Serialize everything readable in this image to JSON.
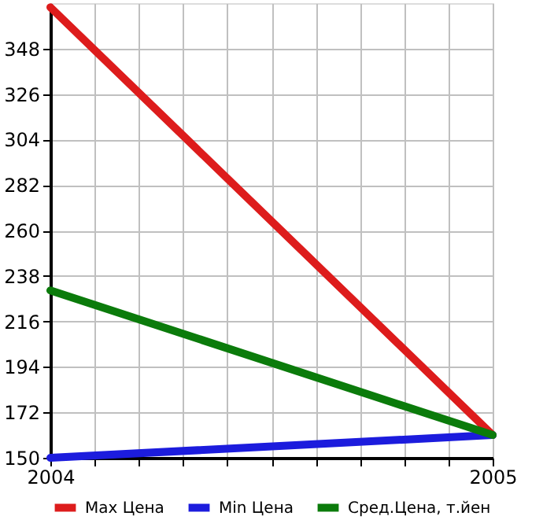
{
  "chart_data": {
    "type": "line",
    "x": [
      2004,
      2005
    ],
    "series": [
      {
        "name": "Max Цена",
        "color": "#dd1c1c",
        "values": [
          368,
          161
        ]
      },
      {
        "name": "Min Цена",
        "color": "#1c1cdd",
        "values": [
          150,
          161
        ]
      },
      {
        "name": "Сред.Цена, т.йен",
        "color": "#0b7b0b",
        "values": [
          231,
          161
        ]
      }
    ],
    "xlim": [
      2004,
      2005
    ],
    "xticks": [
      2004,
      {
        "value": 2004.1,
        "label": null
      },
      {
        "value": 2004.2,
        "label": null
      },
      {
        "value": 2004.3,
        "label": null
      },
      {
        "value": 2004.4,
        "label": null
      },
      {
        "value": 2004.5,
        "label": null
      },
      {
        "value": 2004.6,
        "label": null
      },
      {
        "value": 2004.7,
        "label": null
      },
      {
        "value": 2004.8,
        "label": null
      },
      {
        "value": 2004.9,
        "label": null
      },
      2005
    ],
    "ylim": [
      150,
      370
    ],
    "yticks": [
      150,
      172,
      194,
      216,
      238,
      260,
      282,
      304,
      326,
      348
    ],
    "grid": true,
    "legend": "bottom",
    "marker": "none",
    "line_style": "solid"
  }
}
